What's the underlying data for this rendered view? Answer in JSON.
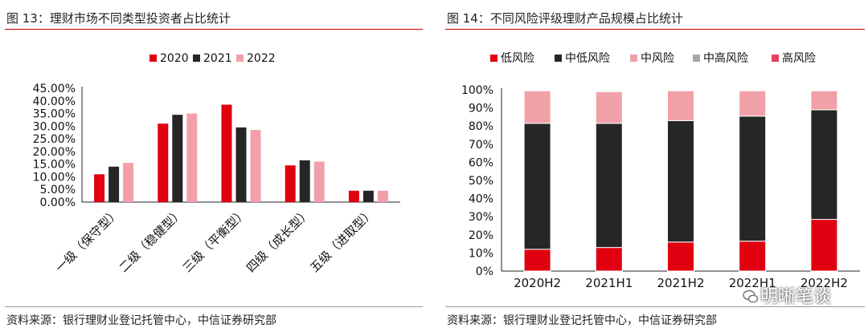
{
  "left": {
    "title": "图 13：理财市场不同类型投资者占比统计",
    "source": "资料来源：银行理财业登记托管中心，中信证券研究部",
    "chart_data": {
      "type": "bar",
      "categories": [
        "一级（保守型）",
        "二级（稳健型）",
        "三级（平衡型）",
        "四级（成长型）",
        "五级（进取型）"
      ],
      "series": [
        {
          "name": "2020",
          "color": "#e00010",
          "values": [
            11.0,
            31.0,
            38.5,
            14.5,
            4.5
          ]
        },
        {
          "name": "2021",
          "color": "#262626",
          "values": [
            14.0,
            34.5,
            29.5,
            16.5,
            4.5
          ]
        },
        {
          "name": "2022",
          "color": "#f2a0a8",
          "values": [
            15.5,
            35.0,
            28.5,
            16.0,
            4.5
          ]
        }
      ],
      "ylim": [
        0,
        45
      ],
      "yticks": [
        "0.00%",
        "5.00%",
        "10.00%",
        "15.00%",
        "20.00%",
        "25.00%",
        "30.00%",
        "35.00%",
        "40.00%",
        "45.00%"
      ],
      "legend": "top"
    }
  },
  "right": {
    "title": "图 14：不同风险评级理财产品规模占比统计",
    "source": "资料来源：银行理财业登记托管中心，中信证券研究部",
    "chart_data": {
      "type": "bar",
      "stacked": true,
      "categories": [
        "2020H2",
        "2021H1",
        "2021H2",
        "2022H1",
        "2022H2"
      ],
      "series": [
        {
          "name": "低风险",
          "color": "#e00010",
          "values": [
            12.0,
            13.0,
            16.0,
            16.5,
            28.5
          ]
        },
        {
          "name": "中低风险",
          "color": "#262626",
          "values": [
            69.5,
            68.5,
            67.0,
            69.0,
            60.5
          ]
        },
        {
          "name": "中风险",
          "color": "#f2a0a8",
          "values": [
            18.0,
            17.5,
            16.5,
            14.0,
            10.5
          ]
        },
        {
          "name": "中高风险",
          "color": "#a6a6a6",
          "values": [
            0.3,
            0.5,
            0.3,
            0.3,
            0.3
          ]
        },
        {
          "name": "高风险",
          "color": "#e64060",
          "values": [
            0.2,
            0.2,
            0.2,
            0.2,
            0.2
          ]
        }
      ],
      "ylim": [
        0,
        100
      ],
      "yticks": [
        "0%",
        "10%",
        "20%",
        "30%",
        "40%",
        "50%",
        "60%",
        "70%",
        "80%",
        "90%",
        "100%"
      ],
      "legend": "top"
    }
  },
  "watermark": {
    "text": "明晰笔谈"
  }
}
